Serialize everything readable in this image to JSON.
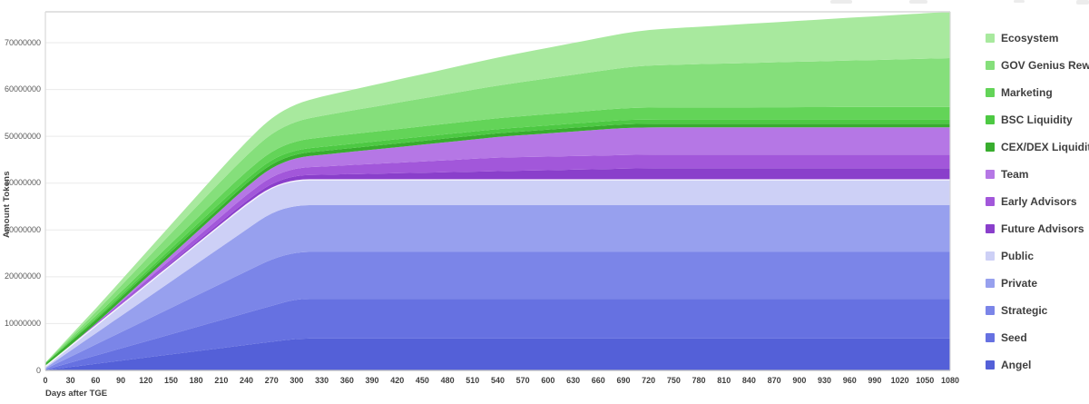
{
  "chart": {
    "y_axis_title": "Amount Tokens",
    "x_axis_title": "Days after TGE",
    "y_ticks": [
      "0",
      "10000000",
      "20000000",
      "30000000",
      "40000000",
      "50000000",
      "60000000",
      "70000000"
    ],
    "x_ticks": [
      "0",
      "30",
      "60",
      "90",
      "120",
      "150",
      "180",
      "210",
      "240",
      "270",
      "300",
      "330",
      "360",
      "390",
      "420",
      "450",
      "480",
      "510",
      "540",
      "570",
      "600",
      "630",
      "660",
      "690",
      "720",
      "750",
      "780",
      "810",
      "840",
      "870",
      "900",
      "930",
      "960",
      "990",
      "1020",
      "1050",
      "1080"
    ]
  },
  "chart_data": {
    "type": "area",
    "stacked": true,
    "title": "",
    "xlabel": "Days after TGE",
    "ylabel": "Amount Tokens",
    "xlim": [
      0,
      1080
    ],
    "x_tick_step": 30,
    "ylim": [
      0,
      76800000
    ],
    "y_tick_step": 10000000,
    "grid": true,
    "legend_position": "right",
    "series_note": "listed top-of-stack first (legend order); stacking is bottom-up from last item (Angel) to first (Ecosystem); points are [day, cumulative_unlocked_tokens] breakpoints with linear vesting between",
    "series": [
      {
        "name": "Ecosystem",
        "color": "#a8e99e",
        "points": [
          [
            0,
            0
          ],
          [
            210,
            2600000
          ],
          [
            330,
            4100000
          ],
          [
            720,
            7600000
          ],
          [
            1080,
            9900000
          ]
        ]
      },
      {
        "name": "GOV Genius Rewards",
        "color": "#85df7b",
        "points": [
          [
            0,
            0
          ],
          [
            210,
            3000000
          ],
          [
            330,
            4600000
          ],
          [
            720,
            9000000
          ],
          [
            1080,
            10400000
          ]
        ]
      },
      {
        "name": "Marketing",
        "color": "#63d458",
        "points": [
          [
            0,
            100000
          ],
          [
            210,
            1500000
          ],
          [
            330,
            2050000
          ],
          [
            720,
            2550000
          ],
          [
            1080,
            2700000
          ]
        ]
      },
      {
        "name": "BSC Liquidity",
        "color": "#4dc943",
        "points": [
          [
            0,
            100000
          ],
          [
            210,
            900000
          ],
          [
            1080,
            900000
          ]
        ]
      },
      {
        "name": "CEX/DEX Liquidity",
        "color": "#38ad2e",
        "points": [
          [
            0,
            600000
          ],
          [
            30,
            800000
          ],
          [
            1080,
            800000
          ]
        ]
      },
      {
        "name": "Team",
        "color": "#b577e5",
        "points": [
          [
            0,
            0
          ],
          [
            60,
            0
          ],
          [
            690,
            5800000
          ],
          [
            1080,
            5800000
          ]
        ]
      },
      {
        "name": "Early Advisors",
        "color": "#a257da",
        "points": [
          [
            0,
            0
          ],
          [
            540,
            2900000
          ],
          [
            1080,
            2900000
          ]
        ]
      },
      {
        "name": "Future Advisors",
        "color": "#8a3fcb",
        "points": [
          [
            0,
            0
          ],
          [
            30,
            0
          ],
          [
            720,
            2500000
          ],
          [
            1080,
            2500000
          ]
        ],
        "white_top_underline": true
      },
      {
        "name": "Public",
        "color": "#cdd0f6",
        "points": [
          [
            0,
            350000
          ],
          [
            240,
            5400000
          ],
          [
            1080,
            5400000
          ]
        ],
        "white_top_border": true
      },
      {
        "name": "Private",
        "color": "#97a0ee",
        "points": [
          [
            0,
            200000
          ],
          [
            270,
            10000000
          ],
          [
            1080,
            10000000
          ]
        ]
      },
      {
        "name": "Strategic",
        "color": "#7b85e8",
        "points": [
          [
            0,
            150000
          ],
          [
            270,
            10000000
          ],
          [
            1080,
            10000000
          ]
        ]
      },
      {
        "name": "Seed",
        "color": "#6671e1",
        "points": [
          [
            0,
            90000
          ],
          [
            300,
            8500000
          ],
          [
            1080,
            8500000
          ]
        ]
      },
      {
        "name": "Angel",
        "color": "#5460d8",
        "points": [
          [
            0,
            60000
          ],
          [
            300,
            6800000
          ],
          [
            1080,
            6800000
          ]
        ]
      }
    ]
  },
  "plot_style": {
    "border_color": "#d9d9d9",
    "axis_color": "#bfbfbf",
    "grid_color": "#eaeaea",
    "background": "#ffffff"
  }
}
